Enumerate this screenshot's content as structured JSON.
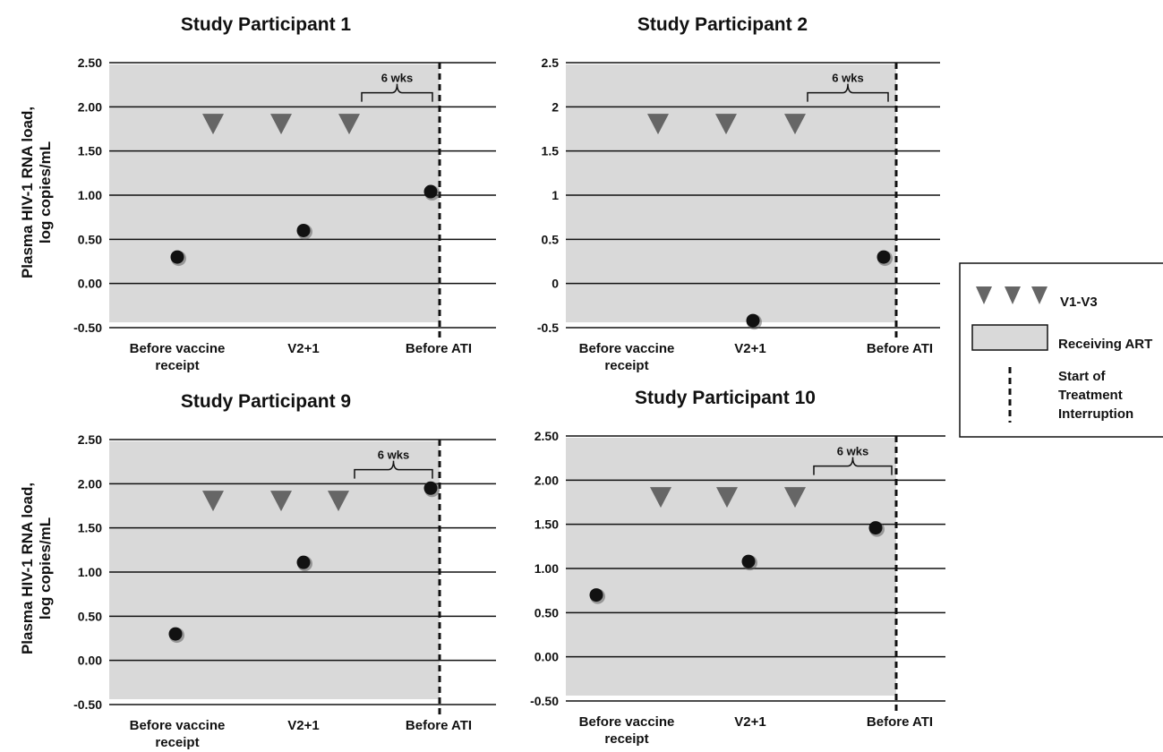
{
  "colors": {
    "plot_bg": "#d9d9d9",
    "grid": "#111111",
    "marker": "#111111",
    "triangle": "#666666"
  },
  "ylabel": "Plasma HIV-1 RNA load,\nlog copies/mL",
  "bracket_label": "6 wks",
  "legend": {
    "triangles_label": "V1-V3",
    "box_label": "Receiving ART",
    "dashed_label": [
      "Start of",
      "Treatment",
      "Interruption"
    ],
    "triangle_icon": "down-triangle-icon",
    "box_icon": "gray-box-icon",
    "dashed_icon": "dashed-line-icon"
  },
  "chart_data": [
    {
      "type": "scatter",
      "title": "Study Participant 1",
      "categories": [
        "Before vaccine\nreceipt",
        "V2+1",
        "Before ATI"
      ],
      "ylim": [
        -0.5,
        2.5
      ],
      "yticks": [
        "-0.50",
        "0.00",
        "0.50",
        "1.00",
        "1.50",
        "2.00",
        "2.50"
      ],
      "points": [
        {
          "x": "Before vaccine receipt",
          "y": 0.3
        },
        {
          "x": "V2+1",
          "y": 0.6
        },
        {
          "x": "Before ATI",
          "y": 1.04
        }
      ],
      "vaccinations": {
        "count": 3,
        "y": 1.82
      },
      "grid": true
    },
    {
      "type": "scatter",
      "title": "Study Participant 2",
      "categories": [
        "Before vaccine\nreceipt",
        "V2+1",
        "Before ATI"
      ],
      "ylim": [
        -0.5,
        2.5
      ],
      "yticks": [
        "-0.5",
        "0",
        "0.5",
        "1",
        "1.5",
        "2",
        "2.5"
      ],
      "points": [
        {
          "x": "Before vaccine receipt",
          "y": null
        },
        {
          "x": "V2+1",
          "y": -0.42
        },
        {
          "x": "Before ATI",
          "y": 0.3
        }
      ],
      "vaccinations": {
        "count": 3,
        "y": 1.82
      },
      "grid": true
    },
    {
      "type": "scatter",
      "title": "Study Participant 9",
      "categories": [
        "Before vaccine\nreceipt",
        "V2+1",
        "Before ATI"
      ],
      "ylim": [
        -0.5,
        2.5
      ],
      "yticks": [
        "-0.50",
        "0.00",
        "0.50",
        "1.00",
        "1.50",
        "2.00",
        "2.50"
      ],
      "points": [
        {
          "x": "Before vaccine receipt",
          "y": 0.3
        },
        {
          "x": "V2+1",
          "y": 1.11
        },
        {
          "x": "Before ATI",
          "y": 1.95
        }
      ],
      "vaccinations": {
        "count": 3,
        "y": 1.82
      },
      "grid": true
    },
    {
      "type": "scatter",
      "title": "Study Participant 10",
      "categories": [
        "Before vaccine\nreceipt",
        "V2+1",
        "Before ATI"
      ],
      "ylim": [
        -0.5,
        2.5
      ],
      "yticks": [
        "-0.50",
        "0.00",
        "0.50",
        "1.00",
        "1.50",
        "2.00",
        "2.50"
      ],
      "points": [
        {
          "x": "Before vaccine receipt",
          "y": 0.7
        },
        {
          "x": "V2+1",
          "y": 1.08
        },
        {
          "x": "Before ATI",
          "y": 1.46
        }
      ],
      "vaccinations": {
        "count": 3,
        "y": 1.82
      },
      "grid": true
    }
  ]
}
